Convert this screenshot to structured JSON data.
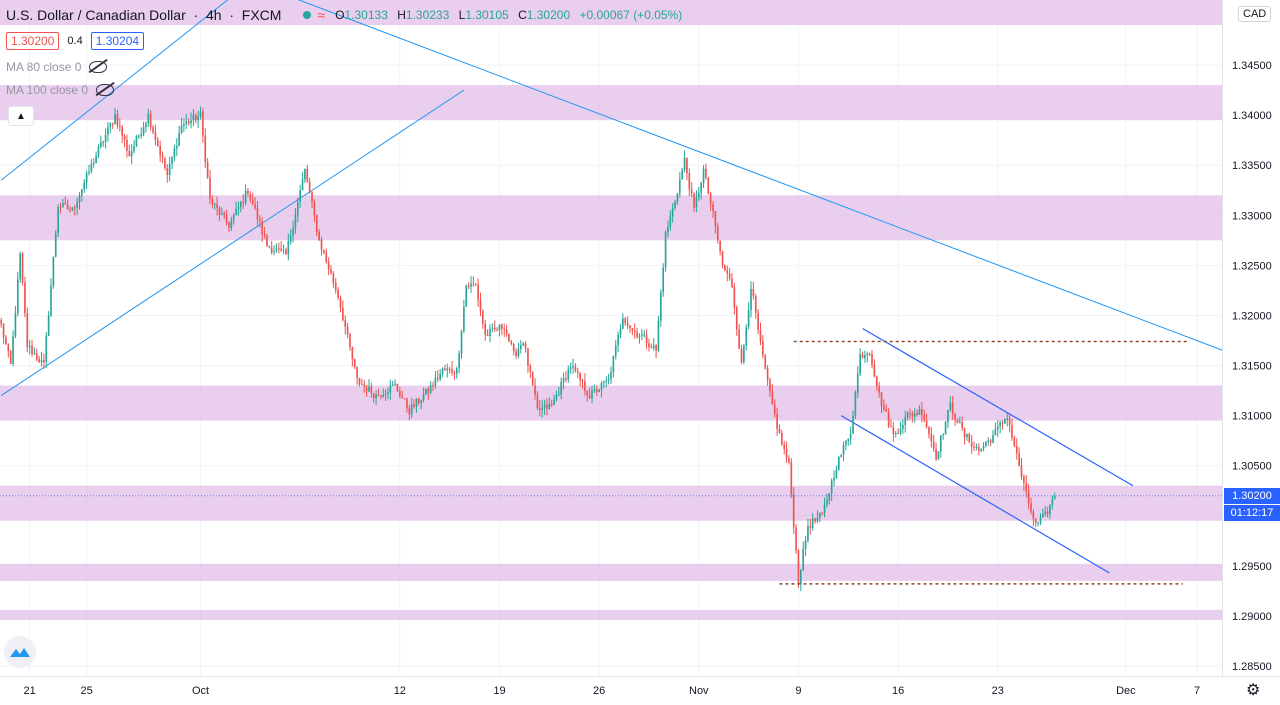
{
  "header": {
    "symbol_title": "U.S. Dollar / Canadian Dollar",
    "interval": "4h",
    "exchange": "FXCM",
    "ohlc": {
      "o_label": "O",
      "o_value": "1.30133",
      "h_label": "H",
      "h_value": "1.30233",
      "l_label": "L",
      "l_value": "1.30105",
      "c_label": "C",
      "c_value": "1.30200",
      "change": "+0.00067 (+0.05%)"
    },
    "wave_icon": "≈"
  },
  "trade": {
    "sell": "1.30200",
    "spread": "0.4",
    "buy": "1.30204"
  },
  "studies": [
    {
      "label": "MA 80 close 0"
    },
    {
      "label": "MA 100 close 0"
    }
  ],
  "currency_button": "CAD",
  "price_tags": {
    "last_price": "1.30200",
    "countdown": "01:12:17"
  },
  "colors": {
    "up": "#26a69a",
    "down": "#ef5350",
    "zone": "#e1bee7",
    "trendline": "#2196f3",
    "channel": "#2962ff",
    "dotted_level": "#8d4a2a",
    "last_price_tag": "#2962ff"
  },
  "chart_data": {
    "type": "candlestick",
    "title": "",
    "y_ticks": [
      "1.34500",
      "1.34000",
      "1.33500",
      "1.33000",
      "1.32500",
      "1.32000",
      "1.31500",
      "1.31000",
      "1.30500",
      "1.30000",
      "1.29500",
      "1.29000",
      "1.28500"
    ],
    "ylim": [
      1.284,
      1.3515
    ],
    "x_ticks": [
      "21",
      "25",
      "Oct",
      "12",
      "19",
      "26",
      "Nov",
      "9",
      "16",
      "23",
      "Dec",
      "7"
    ],
    "x_tick_candle_index": [
      12,
      36,
      84,
      168,
      210,
      252,
      294,
      336,
      378,
      420,
      474,
      504
    ],
    "total_slots": 515,
    "candle_count": 445,
    "waypoints": [
      [
        0,
        1.319
      ],
      [
        4,
        1.315
      ],
      [
        8,
        1.326
      ],
      [
        11,
        1.317
      ],
      [
        18,
        1.315
      ],
      [
        24,
        1.331
      ],
      [
        30,
        1.3305
      ],
      [
        40,
        1.336
      ],
      [
        48,
        1.34
      ],
      [
        54,
        1.336
      ],
      [
        62,
        1.34
      ],
      [
        70,
        1.334
      ],
      [
        76,
        1.339
      ],
      [
        84,
        1.34
      ],
      [
        88,
        1.3315
      ],
      [
        96,
        1.329
      ],
      [
        104,
        1.3325
      ],
      [
        112,
        1.327
      ],
      [
        120,
        1.326
      ],
      [
        128,
        1.3345
      ],
      [
        134,
        1.3275
      ],
      [
        142,
        1.322
      ],
      [
        150,
        1.3135
      ],
      [
        158,
        1.312
      ],
      [
        166,
        1.313
      ],
      [
        172,
        1.3105
      ],
      [
        180,
        1.3125
      ],
      [
        186,
        1.3145
      ],
      [
        192,
        1.3145
      ],
      [
        196,
        1.323
      ],
      [
        200,
        1.323
      ],
      [
        204,
        1.318
      ],
      [
        212,
        1.319
      ],
      [
        216,
        1.316
      ],
      [
        220,
        1.3175
      ],
      [
        226,
        1.3105
      ],
      [
        232,
        1.311
      ],
      [
        240,
        1.315
      ],
      [
        248,
        1.312
      ],
      [
        256,
        1.3135
      ],
      [
        262,
        1.32
      ],
      [
        266,
        1.3185
      ],
      [
        270,
        1.318
      ],
      [
        276,
        1.3165
      ],
      [
        280,
        1.328
      ],
      [
        284,
        1.3315
      ],
      [
        288,
        1.3355
      ],
      [
        292,
        1.3305
      ],
      [
        296,
        1.3345
      ],
      [
        300,
        1.33
      ],
      [
        304,
        1.325
      ],
      [
        308,
        1.323
      ],
      [
        312,
        1.315
      ],
      [
        316,
        1.323
      ],
      [
        320,
        1.317
      ],
      [
        324,
        1.312
      ],
      [
        328,
        1.308
      ],
      [
        332,
        1.305
      ],
      [
        336,
        1.2935
      ],
      [
        340,
        1.299
      ],
      [
        346,
        1.3
      ],
      [
        352,
        1.305
      ],
      [
        358,
        1.3085
      ],
      [
        362,
        1.316
      ],
      [
        366,
        1.3165
      ],
      [
        370,
        1.312
      ],
      [
        376,
        1.308
      ],
      [
        382,
        1.31
      ],
      [
        388,
        1.3105
      ],
      [
        394,
        1.306
      ],
      [
        400,
        1.311
      ],
      [
        406,
        1.308
      ],
      [
        412,
        1.3065
      ],
      [
        418,
        1.308
      ],
      [
        424,
        1.31
      ],
      [
        428,
        1.306
      ],
      [
        432,
        1.302
      ],
      [
        436,
        1.299
      ],
      [
        440,
        1.3
      ],
      [
        444,
        1.302
      ]
    ],
    "zones": [
      [
        1.349,
        1.352
      ],
      [
        1.3395,
        1.343
      ],
      [
        1.3275,
        1.332
      ],
      [
        1.3095,
        1.313
      ],
      [
        1.2995,
        1.303
      ],
      [
        1.2935,
        1.2952
      ],
      [
        1.2896,
        1.2906
      ]
    ],
    "trendlines": [
      {
        "kind": "rising-upper",
        "from": [
          0,
          1.3335
        ],
        "to": [
          98,
          1.352
        ]
      },
      {
        "kind": "rising-lower",
        "from": [
          0,
          1.312
        ],
        "to": [
          195,
          1.3425
        ]
      },
      {
        "kind": "falling",
        "from": [
          120,
          1.352
        ],
        "to": [
          515,
          1.3165
        ]
      }
    ],
    "channel_lines": [
      {
        "kind": "upper",
        "from": [
          363,
          1.3187
        ],
        "to": [
          477,
          1.303
        ]
      },
      {
        "kind": "lower",
        "from": [
          354,
          1.31
        ],
        "to": [
          467,
          1.2943
        ]
      }
    ],
    "dotted_levels": [
      {
        "y": 1.3174,
        "from": 334,
        "to": 500
      },
      {
        "y": 1.2932,
        "from": 328,
        "to": 498
      }
    ],
    "last_price": 1.302
  }
}
